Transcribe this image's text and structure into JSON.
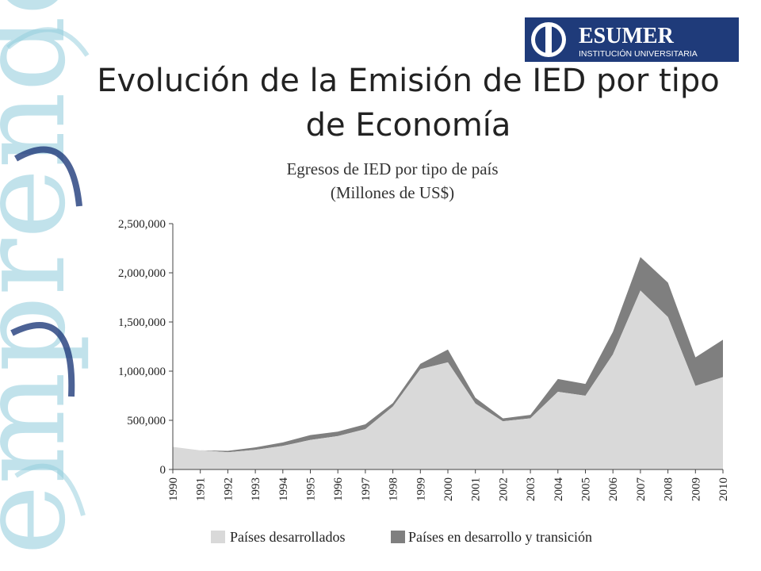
{
  "slide": {
    "title": "Evolución de la Emisión de IED por tipo de Economía"
  },
  "logo": {
    "name": "ESUMER",
    "tagline": "INSTITUCIÓN UNIVERSITARIA",
    "color": "#1f3b7a"
  },
  "decor": {
    "watermark_text": "emprende",
    "colors": [
      "#7fc3d6",
      "#1f3b7a"
    ]
  },
  "chart_data": {
    "type": "area",
    "stacked": true,
    "title": "Egresos de IED por tipo de país",
    "subtitle": "(Millones de US$)",
    "x": [
      "1990",
      "1991",
      "1992",
      "1993",
      "1994",
      "1995",
      "1996",
      "1997",
      "1998",
      "1999",
      "2000",
      "2001",
      "2002",
      "2003",
      "2004",
      "2005",
      "2006",
      "2007",
      "2008",
      "2009",
      "2010"
    ],
    "series": [
      {
        "name": "Países desarrollados",
        "color": "#d9d9d9",
        "values": [
          230000,
          195000,
          175000,
          200000,
          240000,
          300000,
          340000,
          410000,
          640000,
          1020000,
          1090000,
          670000,
          490000,
          520000,
          790000,
          750000,
          1170000,
          1820000,
          1550000,
          850000,
          940000
        ]
      },
      {
        "name": "Países en desarrollo y transición",
        "color": "#7f7f7f",
        "values": [
          0,
          0,
          15000,
          25000,
          35000,
          50000,
          45000,
          50000,
          35000,
          55000,
          130000,
          60000,
          30000,
          35000,
          130000,
          120000,
          230000,
          340000,
          350000,
          290000,
          380000
        ]
      }
    ],
    "ylim": [
      0,
      2500000
    ],
    "yticks": [
      0,
      500000,
      1000000,
      1500000,
      2000000,
      2500000
    ],
    "ytick_labels": [
      "0",
      "500,000",
      "1,000,000",
      "1,500,000",
      "2,000,000",
      "2,500,000"
    ],
    "legend_position": "bottom",
    "grid": false
  }
}
